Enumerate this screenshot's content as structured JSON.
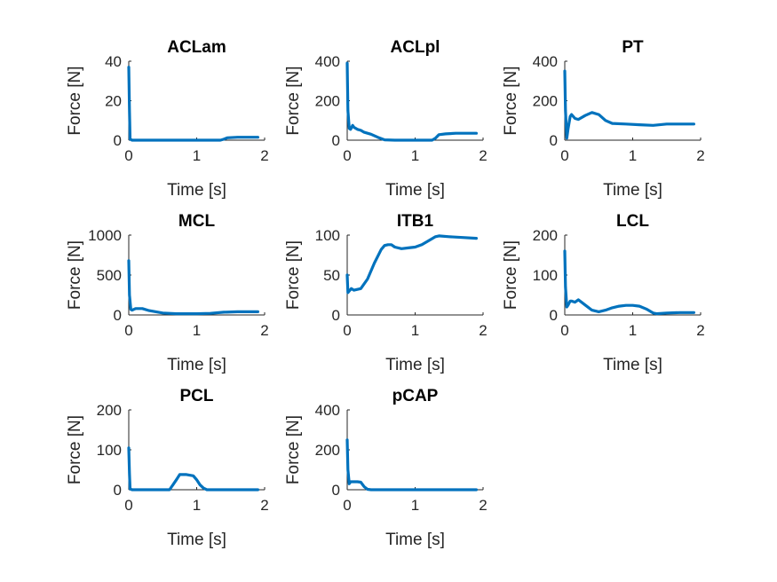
{
  "colors": {
    "series": "#0072BD",
    "axis": "#262626",
    "text": "#000000"
  },
  "chart_data": [
    {
      "type": "line",
      "title": "ACLam",
      "xlabel": "Time [s]",
      "ylabel": "Force [N]",
      "xlim": [
        0,
        2
      ],
      "ylim": [
        0,
        40
      ],
      "xticks": [
        0,
        1,
        2
      ],
      "yticks": [
        0,
        20,
        40
      ],
      "xtick_labels": [
        "0",
        "1",
        "2"
      ],
      "ytick_labels": [
        "0",
        "20",
        "40"
      ],
      "series": [
        {
          "x": [
            0,
            0.01,
            0.02,
            0.05,
            1.0,
            1.35,
            1.4,
            1.45,
            1.6,
            1.9
          ],
          "y": [
            37,
            15,
            0.5,
            0,
            0,
            0,
            0.5,
            1.2,
            1.5,
            1.5
          ]
        }
      ]
    },
    {
      "type": "line",
      "title": "ACLpl",
      "xlabel": "Time [s]",
      "ylabel": "Force [N]",
      "xlim": [
        0,
        2
      ],
      "ylim": [
        0,
        400
      ],
      "xticks": [
        0,
        1,
        2
      ],
      "yticks": [
        0,
        200,
        400
      ],
      "xtick_labels": [
        "0",
        "1",
        "2"
      ],
      "ytick_labels": [
        "0",
        "200",
        "400"
      ],
      "series": [
        {
          "x": [
            0,
            0.01,
            0.03,
            0.05,
            0.08,
            0.1,
            0.15,
            0.2,
            0.25,
            0.35,
            0.45,
            0.55,
            0.7,
            1.0,
            1.25,
            1.3,
            1.35,
            1.45,
            1.6,
            1.9
          ],
          "y": [
            390,
            150,
            60,
            55,
            75,
            65,
            55,
            50,
            40,
            30,
            15,
            2,
            0,
            0,
            0,
            10,
            28,
            32,
            35,
            35
          ]
        }
      ]
    },
    {
      "type": "line",
      "title": "PT",
      "xlabel": "Time [s]",
      "ylabel": "Force [N]",
      "xlim": [
        0,
        2
      ],
      "ylim": [
        0,
        400
      ],
      "xticks": [
        0,
        1,
        2
      ],
      "yticks": [
        0,
        200,
        400
      ],
      "xtick_labels": [
        "0",
        "1",
        "2"
      ],
      "ytick_labels": [
        "0",
        "200",
        "400"
      ],
      "series": [
        {
          "x": [
            0,
            0.01,
            0.03,
            0.05,
            0.08,
            0.1,
            0.15,
            0.2,
            0.3,
            0.4,
            0.5,
            0.6,
            0.7,
            0.9,
            1.1,
            1.3,
            1.5,
            1.7,
            1.9
          ],
          "y": [
            350,
            150,
            10,
            60,
            120,
            130,
            110,
            105,
            125,
            140,
            130,
            100,
            85,
            82,
            78,
            75,
            82,
            82,
            82
          ]
        }
      ]
    },
    {
      "type": "line",
      "title": "MCL",
      "xlabel": "Time [s]",
      "ylabel": "Force [N]",
      "xlim": [
        0,
        2
      ],
      "ylim": [
        0,
        1000
      ],
      "xticks": [
        0,
        1,
        2
      ],
      "yticks": [
        0,
        500,
        1000
      ],
      "xtick_labels": [
        "0",
        "1",
        "2"
      ],
      "ytick_labels": [
        "0",
        "500",
        "1000"
      ],
      "series": [
        {
          "x": [
            0,
            0.01,
            0.03,
            0.05,
            0.1,
            0.2,
            0.3,
            0.5,
            0.7,
            1.0,
            1.2,
            1.4,
            1.6,
            1.9
          ],
          "y": [
            680,
            250,
            70,
            60,
            80,
            80,
            55,
            25,
            15,
            15,
            20,
            35,
            40,
            40
          ]
        }
      ]
    },
    {
      "type": "line",
      "title": "ITB1",
      "xlabel": "Time [s]",
      "ylabel": "Force [N]",
      "xlim": [
        0,
        2
      ],
      "ylim": [
        0,
        100
      ],
      "xticks": [
        0,
        1,
        2
      ],
      "yticks": [
        0,
        50,
        100
      ],
      "xtick_labels": [
        "0",
        "1",
        "2"
      ],
      "ytick_labels": [
        "0",
        "50",
        "100"
      ],
      "series": [
        {
          "x": [
            0,
            0.01,
            0.03,
            0.06,
            0.1,
            0.2,
            0.3,
            0.4,
            0.5,
            0.55,
            0.6,
            0.65,
            0.7,
            0.8,
            0.9,
            1.0,
            1.1,
            1.2,
            1.3,
            1.35,
            1.5,
            1.7,
            1.9
          ],
          "y": [
            50,
            28,
            30,
            33,
            31,
            33,
            45,
            65,
            82,
            87,
            88,
            88,
            85,
            83,
            84,
            85,
            88,
            93,
            98,
            99,
            98,
            97,
            96
          ]
        }
      ]
    },
    {
      "type": "line",
      "title": "LCL",
      "xlabel": "Time [s]",
      "ylabel": "Force [N]",
      "xlim": [
        0,
        2
      ],
      "ylim": [
        0,
        200
      ],
      "xticks": [
        0,
        1,
        2
      ],
      "yticks": [
        0,
        100,
        200
      ],
      "xtick_labels": [
        "0",
        "1",
        "2"
      ],
      "ytick_labels": [
        "0",
        "100",
        "200"
      ],
      "series": [
        {
          "x": [
            0,
            0.01,
            0.03,
            0.05,
            0.08,
            0.1,
            0.15,
            0.2,
            0.3,
            0.4,
            0.5,
            0.6,
            0.7,
            0.8,
            0.9,
            1.0,
            1.1,
            1.2,
            1.3,
            1.35,
            1.5,
            1.7,
            1.9
          ],
          "y": [
            160,
            70,
            20,
            25,
            35,
            35,
            32,
            38,
            25,
            12,
            8,
            12,
            18,
            22,
            24,
            24,
            22,
            15,
            5,
            3,
            5,
            6,
            6
          ]
        }
      ]
    },
    {
      "type": "line",
      "title": "PCL",
      "xlabel": "Time [s]",
      "ylabel": "Force [N]",
      "xlim": [
        0,
        2
      ],
      "ylim": [
        0,
        200
      ],
      "xticks": [
        0,
        1,
        2
      ],
      "yticks": [
        0,
        100,
        200
      ],
      "xtick_labels": [
        "0",
        "1",
        "2"
      ],
      "ytick_labels": [
        "0",
        "100",
        "200"
      ],
      "series": [
        {
          "x": [
            0,
            0.01,
            0.02,
            0.05,
            0.6,
            0.65,
            0.7,
            0.72,
            0.75,
            0.85,
            0.95,
            1.0,
            1.05,
            1.1,
            1.15,
            1.2,
            1.5,
            1.9
          ],
          "y": [
            105,
            40,
            2,
            0,
            0,
            12,
            25,
            30,
            38,
            38,
            35,
            25,
            12,
            4,
            0,
            0,
            0,
            0
          ]
        }
      ]
    },
    {
      "type": "line",
      "title": "pCAP",
      "xlabel": "Time [s]",
      "ylabel": "Force [N]",
      "xlim": [
        0,
        2
      ],
      "ylim": [
        0,
        400
      ],
      "xticks": [
        0,
        1,
        2
      ],
      "yticks": [
        0,
        200,
        400
      ],
      "xtick_labels": [
        "0",
        "1",
        "2"
      ],
      "ytick_labels": [
        "0",
        "200",
        "400"
      ],
      "series": [
        {
          "x": [
            0,
            0.01,
            0.03,
            0.05,
            0.08,
            0.15,
            0.2,
            0.25,
            0.3,
            0.35,
            0.5,
            1.0,
            1.9
          ],
          "y": [
            250,
            100,
            30,
            40,
            40,
            40,
            38,
            15,
            2,
            0,
            0,
            0,
            0
          ]
        }
      ]
    }
  ]
}
